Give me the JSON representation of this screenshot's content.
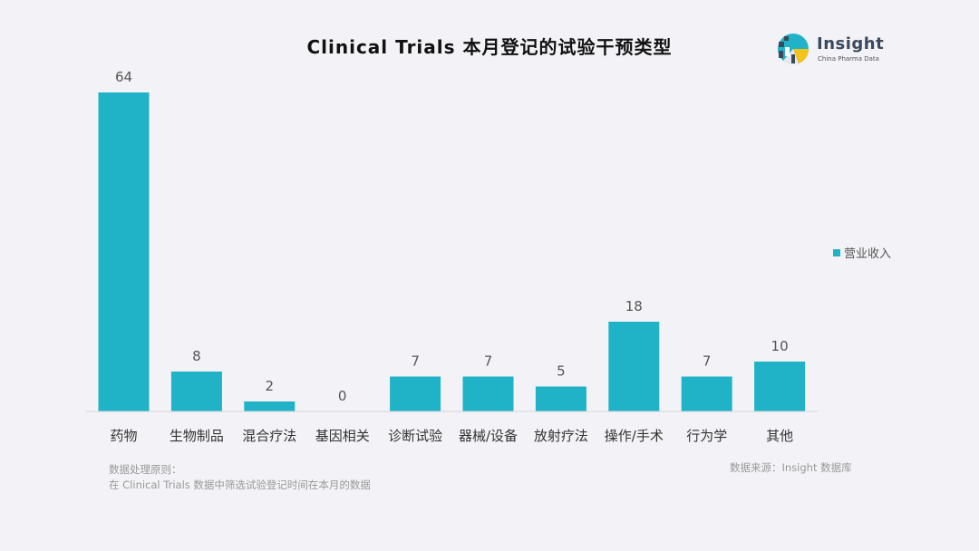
{
  "title": "Clinical Trials 本月登记的试验干预类型",
  "logo": {
    "name": "Insight",
    "tagline": "China Pharma Data"
  },
  "legend": {
    "label": "营业收入"
  },
  "chart_data": {
    "type": "bar",
    "title": "Clinical Trials 本月登记的试验干预类型",
    "categories": [
      "药物",
      "生物制品",
      "混合疗法",
      "基因相关",
      "诊断试验",
      "器械/设备",
      "放射疗法",
      "操作/手术",
      "行为学",
      "其他"
    ],
    "series": [
      {
        "name": "营业收入",
        "values": [
          64,
          8,
          2,
          0,
          7,
          7,
          5,
          18,
          7,
          10
        ]
      }
    ],
    "ylim": [
      0,
      64
    ],
    "grid": false,
    "legend_position": "right",
    "bar_color": "#20b3c8"
  },
  "notes": {
    "principle_line1": "数据处理原则：",
    "principle_line2": "在 Clinical Trials 数据中筛选试验登记时间在本月的数据",
    "source": "数据来源：Insight 数据库"
  }
}
